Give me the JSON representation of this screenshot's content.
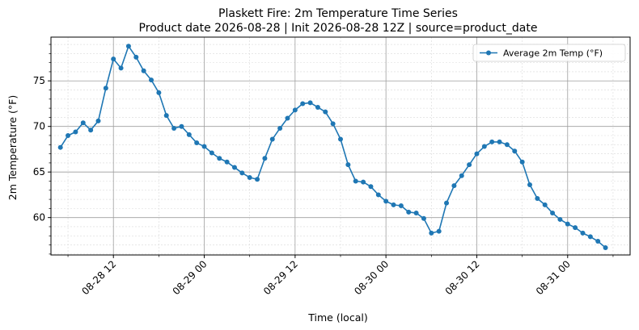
{
  "chart_data": {
    "type": "line",
    "title": "Plaskett Fire: 2m Temperature Time Series",
    "subtitle": "Product date 2026-08-28 | Init 2026-08-28 12Z | source=product_date",
    "xlabel": "Time (local)",
    "ylabel": "2m Temperature (°F)",
    "x_type": "datetime",
    "xlim": [
      "2026-08-28 03:45",
      "2026-08-31 08:15"
    ],
    "ylim": [
      55.9,
      79.8
    ],
    "x_ticks": [
      {
        "t": "2026-08-28 12:00",
        "label": "08-28 12"
      },
      {
        "t": "2026-08-29 00:00",
        "label": "08-29 00"
      },
      {
        "t": "2026-08-29 12:00",
        "label": "08-29 12"
      },
      {
        "t": "2026-08-30 00:00",
        "label": "08-30 00"
      },
      {
        "t": "2026-08-30 12:00",
        "label": "08-30 12"
      },
      {
        "t": "2026-08-31 00:00",
        "label": "08-31 00"
      }
    ],
    "x_minor_hours": 6,
    "y_ticks": [
      60,
      65,
      70,
      75
    ],
    "y_minor_step": 1,
    "grid": true,
    "legend_position": "top-right",
    "color": "#1f77b4",
    "series": [
      {
        "name": "Average 2m Temp (°F)",
        "x": [
          "2026-08-28 05:00",
          "2026-08-28 06:00",
          "2026-08-28 07:00",
          "2026-08-28 08:00",
          "2026-08-28 09:00",
          "2026-08-28 10:00",
          "2026-08-28 11:00",
          "2026-08-28 12:00",
          "2026-08-28 13:00",
          "2026-08-28 14:00",
          "2026-08-28 15:00",
          "2026-08-28 16:00",
          "2026-08-28 17:00",
          "2026-08-28 18:00",
          "2026-08-28 19:00",
          "2026-08-28 20:00",
          "2026-08-28 21:00",
          "2026-08-28 22:00",
          "2026-08-28 23:00",
          "2026-08-29 00:00",
          "2026-08-29 01:00",
          "2026-08-29 02:00",
          "2026-08-29 03:00",
          "2026-08-29 04:00",
          "2026-08-29 05:00",
          "2026-08-29 06:00",
          "2026-08-29 07:00",
          "2026-08-29 08:00",
          "2026-08-29 09:00",
          "2026-08-29 10:00",
          "2026-08-29 11:00",
          "2026-08-29 12:00",
          "2026-08-29 13:00",
          "2026-08-29 14:00",
          "2026-08-29 15:00",
          "2026-08-29 16:00",
          "2026-08-29 17:00",
          "2026-08-29 18:00",
          "2026-08-29 19:00",
          "2026-08-29 20:00",
          "2026-08-29 21:00",
          "2026-08-29 22:00",
          "2026-08-29 23:00",
          "2026-08-30 00:00",
          "2026-08-30 01:00",
          "2026-08-30 02:00",
          "2026-08-30 03:00",
          "2026-08-30 04:00",
          "2026-08-30 05:00",
          "2026-08-30 06:00",
          "2026-08-30 07:00",
          "2026-08-30 08:00",
          "2026-08-30 09:00",
          "2026-08-30 10:00",
          "2026-08-30 11:00",
          "2026-08-30 12:00",
          "2026-08-30 13:00",
          "2026-08-30 14:00",
          "2026-08-30 15:00",
          "2026-08-30 16:00",
          "2026-08-30 17:00",
          "2026-08-30 18:00",
          "2026-08-30 19:00",
          "2026-08-30 20:00",
          "2026-08-30 21:00",
          "2026-08-30 22:00",
          "2026-08-30 23:00",
          "2026-08-31 00:00",
          "2026-08-31 01:00",
          "2026-08-31 02:00",
          "2026-08-31 03:00",
          "2026-08-31 04:00",
          "2026-08-31 05:00"
        ],
        "y": [
          67.7,
          69.0,
          69.4,
          70.4,
          69.6,
          70.6,
          74.2,
          77.4,
          76.4,
          78.8,
          77.6,
          76.1,
          75.1,
          73.7,
          71.2,
          69.8,
          70.0,
          69.1,
          68.2,
          67.8,
          67.1,
          66.5,
          66.1,
          65.5,
          64.9,
          64.4,
          64.2,
          66.5,
          68.6,
          69.8,
          70.9,
          71.8,
          72.5,
          72.6,
          72.1,
          71.6,
          70.3,
          68.6,
          65.8,
          64.0,
          63.9,
          63.4,
          62.5,
          61.8,
          61.4,
          61.3,
          60.6,
          60.5,
          59.9,
          58.3,
          58.5,
          61.6,
          63.5,
          64.6,
          65.8,
          67.0,
          67.8,
          68.3,
          68.3,
          68.0,
          67.3,
          66.1,
          63.6,
          62.1,
          61.4,
          60.5,
          59.8,
          59.3,
          58.9,
          58.3,
          57.9,
          57.4,
          56.7
        ]
      }
    ]
  }
}
